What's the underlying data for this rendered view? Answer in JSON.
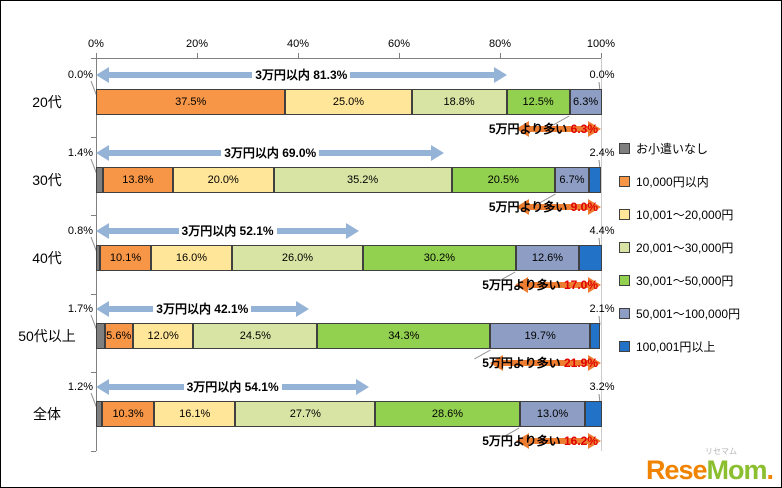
{
  "chart_data": {
    "type": "bar",
    "variant": "horizontal-stacked",
    "grid": "off",
    "legend_position": "right",
    "x_axis": {
      "min": 0,
      "max": 100,
      "ticks": [
        "0%",
        "20%",
        "40%",
        "60%",
        "80%",
        "100%"
      ]
    },
    "categories": [
      "20代",
      "30代",
      "40代",
      "50代以上",
      "全体"
    ],
    "series": [
      {
        "name": "お小遣いなし",
        "color": "#7f7f7f",
        "label_position": "outside-left",
        "values": [
          0.0,
          1.4,
          0.8,
          1.7,
          1.2
        ]
      },
      {
        "name": "10,000円以内",
        "color": "#f79646",
        "label_position": "inside",
        "values": [
          37.5,
          13.8,
          10.1,
          5.6,
          10.3
        ]
      },
      {
        "name": "10,001〜20,000円",
        "color": "#ffe699",
        "label_position": "inside",
        "values": [
          25.0,
          20.0,
          16.0,
          12.0,
          16.1
        ]
      },
      {
        "name": "20,001〜30,000円",
        "color": "#d8e4a4",
        "label_position": "inside",
        "values": [
          18.8,
          35.2,
          26.0,
          24.5,
          27.7
        ]
      },
      {
        "name": "30,001〜50,000円",
        "color": "#92d050",
        "label_position": "inside",
        "values": [
          12.5,
          20.5,
          30.2,
          34.3,
          28.6
        ]
      },
      {
        "name": "50,001〜100,000円",
        "color": "#8d9dc3",
        "label_position": "inside",
        "values": [
          6.3,
          6.7,
          12.6,
          19.7,
          13.0
        ]
      },
      {
        "name": "100,001円以上",
        "color": "#2272c8",
        "label_position": "outside-right",
        "values": [
          0.0,
          2.4,
          4.4,
          2.1,
          3.2
        ]
      }
    ],
    "annotations": {
      "under_30k": {
        "label": "3万円以内",
        "color": "#95b3d7",
        "values": [
          81.3,
          69.0,
          52.1,
          42.1,
          54.1
        ]
      },
      "over_50k": {
        "label": "5万円より多い",
        "color": "#ed7d31",
        "value_color": "#e00000",
        "values": [
          6.3,
          9.0,
          17.0,
          21.9,
          16.2
        ]
      }
    }
  },
  "branding": {
    "site_small": "リセマム",
    "logo_rese": "Rese",
    "logo_mom": "Mom",
    "logo_dot": "."
  }
}
